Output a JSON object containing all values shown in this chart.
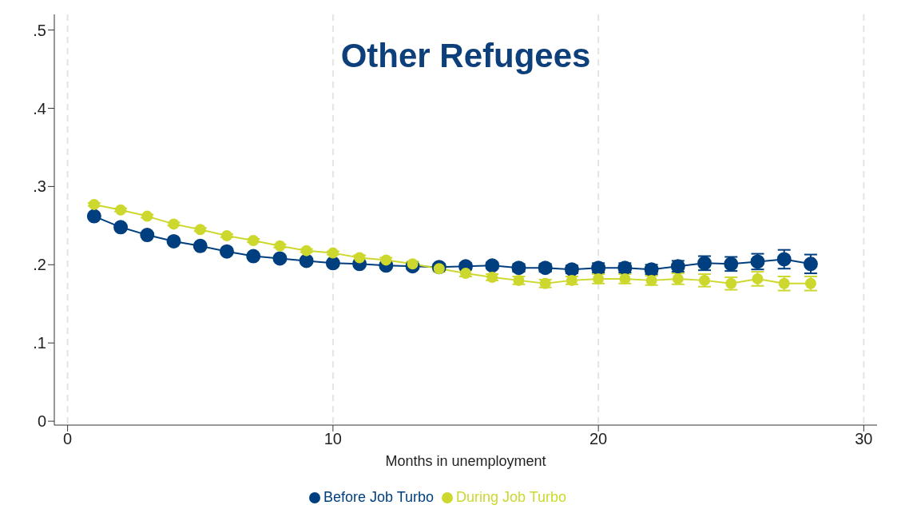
{
  "chart_data": {
    "type": "line",
    "title": "Other Refugees",
    "xlabel": "Months in unemployment",
    "x": [
      1,
      2,
      3,
      4,
      5,
      6,
      7,
      8,
      9,
      10,
      11,
      12,
      13,
      14,
      15,
      16,
      17,
      18,
      19,
      20,
      21,
      22,
      23,
      24,
      25,
      26,
      27,
      28
    ],
    "series": [
      {
        "name": "Before Job Turbo",
        "color": "#003f7f",
        "values": [
          0.262,
          0.248,
          0.238,
          0.23,
          0.224,
          0.217,
          0.211,
          0.208,
          0.205,
          0.202,
          0.201,
          0.199,
          0.198,
          0.197,
          0.198,
          0.199,
          0.196,
          0.196,
          0.194,
          0.196,
          0.196,
          0.194,
          0.198,
          0.202,
          0.201,
          0.204,
          0.207,
          0.201
        ],
        "errors": [
          0.002,
          0.002,
          0.002,
          0.002,
          0.002,
          0.002,
          0.002,
          0.002,
          0.002,
          0.002,
          0.003,
          0.003,
          0.003,
          0.004,
          0.004,
          0.004,
          0.005,
          0.005,
          0.005,
          0.006,
          0.006,
          0.006,
          0.007,
          0.009,
          0.009,
          0.01,
          0.012,
          0.012
        ]
      },
      {
        "name": "During Job Turbo",
        "color": "#cdd82e",
        "values": [
          0.277,
          0.27,
          0.262,
          0.252,
          0.245,
          0.237,
          0.231,
          0.224,
          0.218,
          0.215,
          0.209,
          0.206,
          0.201,
          0.195,
          0.189,
          0.184,
          0.18,
          0.176,
          0.18,
          0.182,
          0.182,
          0.18,
          0.182,
          0.18,
          0.176,
          0.182,
          0.176,
          0.176
        ],
        "errors": [
          0.002,
          0.002,
          0.002,
          0.002,
          0.002,
          0.002,
          0.002,
          0.002,
          0.002,
          0.002,
          0.003,
          0.003,
          0.003,
          0.004,
          0.004,
          0.004,
          0.005,
          0.005,
          0.005,
          0.006,
          0.006,
          0.006,
          0.007,
          0.008,
          0.008,
          0.009,
          0.009,
          0.009
        ]
      }
    ],
    "xlim": [
      -0.5,
      30.5
    ],
    "xticks": [
      0,
      10,
      20,
      30
    ],
    "ylim": [
      -0.005,
      0.52
    ],
    "yticks": [
      0,
      {
        "value": 0.1,
        "label": ".1"
      },
      {
        "value": 0.2,
        "label": ".2"
      },
      {
        "value": 0.3,
        "label": ".3"
      },
      {
        "value": 0.4,
        "label": ".4"
      },
      {
        "value": 0.5,
        "label": ".5"
      }
    ],
    "grid": "x",
    "legend": "bottom",
    "marker": "circle",
    "line_style": "solid"
  }
}
